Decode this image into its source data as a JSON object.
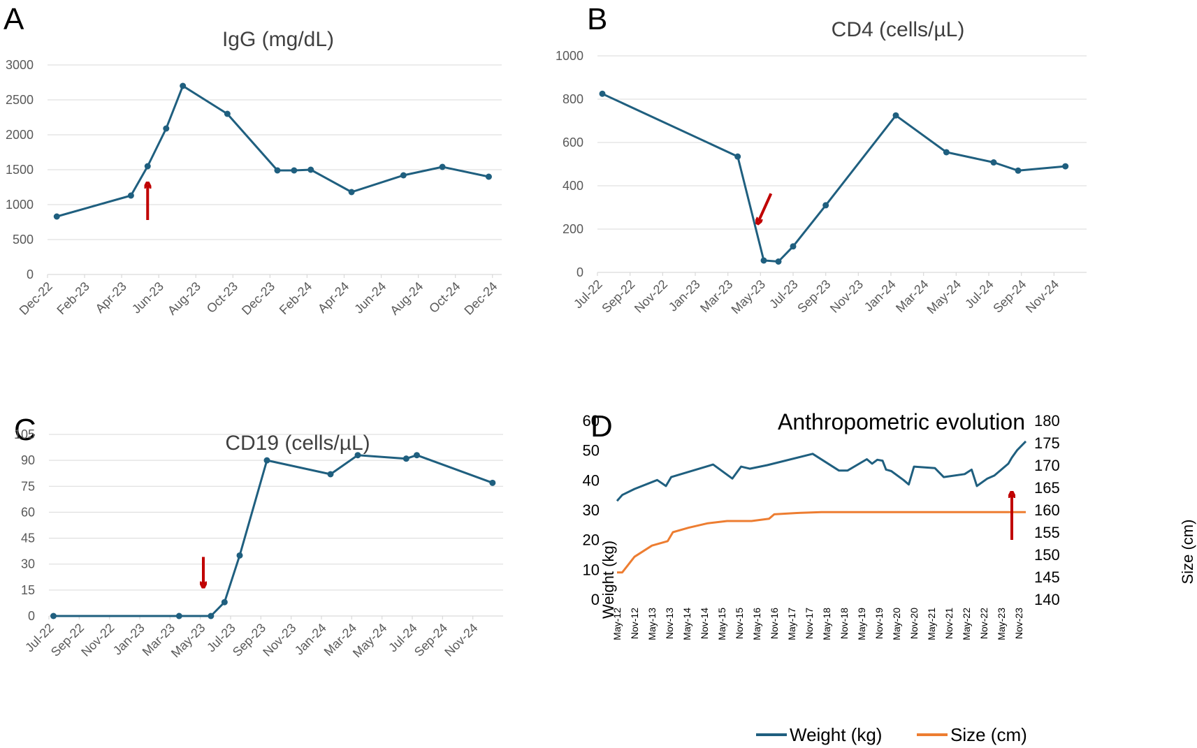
{
  "colors": {
    "line": "#1f5f7f",
    "orange": "#ed7d31",
    "arrow": "#c00000"
  },
  "chart_data": [
    {
      "panel": "A",
      "type": "line",
      "title": "IgG (mg/dL)",
      "ylim": [
        0,
        3000
      ],
      "yticks": [
        0,
        500,
        1000,
        1500,
        2000,
        2500,
        3000
      ],
      "xlim": [
        0,
        24.5
      ],
      "xticks": [
        {
          "label": "Dec-22",
          "t": 0
        },
        {
          "label": "Feb-23",
          "t": 2
        },
        {
          "label": "Apr-23",
          "t": 4
        },
        {
          "label": "Jun-23",
          "t": 6
        },
        {
          "label": "Aug-23",
          "t": 8
        },
        {
          "label": "Oct-23",
          "t": 10
        },
        {
          "label": "Dec-23",
          "t": 12
        },
        {
          "label": "Feb-24",
          "t": 14
        },
        {
          "label": "Apr-24",
          "t": 16
        },
        {
          "label": "Jun-24",
          "t": 18
        },
        {
          "label": "Aug-24",
          "t": 20
        },
        {
          "label": "Oct-24",
          "t": 22
        },
        {
          "label": "Dec-24",
          "t": 24
        }
      ],
      "series": [
        {
          "name": "IgG",
          "t": [
            0.5,
            4.5,
            5.4,
            6.4,
            7.3,
            9.7,
            12.4,
            13.3,
            14.2,
            16.4,
            19.2,
            21.3,
            23.8
          ],
          "values": [
            830,
            1130,
            1550,
            2090,
            2700,
            2300,
            1490,
            1490,
            1500,
            1180,
            1420,
            1540,
            1400
          ]
        }
      ],
      "arrow": {
        "t": 5.4,
        "value": 780,
        "direction": "up"
      }
    },
    {
      "panel": "B",
      "type": "line",
      "title": "CD4 (cells/µL)",
      "ylim": [
        0,
        1000
      ],
      "yticks": [
        0,
        200,
        400,
        600,
        800,
        1000
      ],
      "xlim": [
        0,
        30
      ],
      "xticks": [
        {
          "label": "Jul-22",
          "t": 0
        },
        {
          "label": "Sep-22",
          "t": 2
        },
        {
          "label": "Nov-22",
          "t": 4
        },
        {
          "label": "Jan-23",
          "t": 6
        },
        {
          "label": "Mar-23",
          "t": 8
        },
        {
          "label": "May-23",
          "t": 10
        },
        {
          "label": "Jul-23",
          "t": 12
        },
        {
          "label": "Sep-23",
          "t": 14
        },
        {
          "label": "Nov-23",
          "t": 16
        },
        {
          "label": "Jan-24",
          "t": 18
        },
        {
          "label": "Mar-24",
          "t": 20
        },
        {
          "label": "May-24",
          "t": 22
        },
        {
          "label": "Jul-24",
          "t": 24
        },
        {
          "label": "Sep-24",
          "t": 26
        },
        {
          "label": "Nov-24",
          "t": 28
        }
      ],
      "series": [
        {
          "name": "CD4",
          "t": [
            0.3,
            8.6,
            10.2,
            11.1,
            12.0,
            14.0,
            18.3,
            21.4,
            24.3,
            25.8,
            28.7
          ],
          "values": [
            825,
            535,
            55,
            50,
            120,
            310,
            725,
            555,
            508,
            470,
            490
          ]
        }
      ],
      "arrow": {
        "t": 10.3,
        "value": 235,
        "direction": "down-left"
      }
    },
    {
      "panel": "C",
      "type": "line",
      "title": "CD19 (cells/µL)",
      "ylim": [
        0,
        105
      ],
      "yticks": [
        0,
        15,
        30,
        45,
        60,
        75,
        90,
        105
      ],
      "xlim": [
        0,
        30
      ],
      "xticks": [
        {
          "label": "Jul-22",
          "t": 0
        },
        {
          "label": "Sep-22",
          "t": 2
        },
        {
          "label": "Nov-22",
          "t": 4
        },
        {
          "label": "Jan-23",
          "t": 6
        },
        {
          "label": "Mar-23",
          "t": 8
        },
        {
          "label": "May-23",
          "t": 10
        },
        {
          "label": "Jul-23",
          "t": 12
        },
        {
          "label": "Sep-23",
          "t": 14
        },
        {
          "label": "Nov-23",
          "t": 16
        },
        {
          "label": "Jan-24",
          "t": 18
        },
        {
          "label": "Mar-24",
          "t": 20
        },
        {
          "label": "May-24",
          "t": 22
        },
        {
          "label": "Jul-24",
          "t": 24
        },
        {
          "label": "Sep-24",
          "t": 26
        },
        {
          "label": "Nov-24",
          "t": 28
        }
      ],
      "series": [
        {
          "name": "CD19",
          "t": [
            0.3,
            8.6,
            10.7,
            11.6,
            12.6,
            14.4,
            18.6,
            20.4,
            23.6,
            24.3,
            29.3
          ],
          "values": [
            0,
            0,
            0,
            8,
            35,
            90,
            82,
            93,
            91,
            93,
            77
          ]
        }
      ],
      "arrow": {
        "t": 10.2,
        "value": 18,
        "direction": "down"
      }
    },
    {
      "panel": "D",
      "type": "line",
      "title": "Anthropometric evolution",
      "ylabel": "Weight (kg)",
      "y2label": "Size (cm)",
      "ylim": [
        0,
        60
      ],
      "yticks": [
        0,
        10,
        20,
        30,
        40,
        50,
        60
      ],
      "y2lim": [
        140,
        180
      ],
      "y2ticks": [
        140,
        145,
        150,
        155,
        160,
        165,
        170,
        175,
        180
      ],
      "xlim": [
        0,
        23.4
      ],
      "xticks": [
        "May-12",
        "Nov-12",
        "May-13",
        "Nov-13",
        "May-14",
        "Nov-14",
        "May-15",
        "Nov-15",
        "May-16",
        "Nov-16",
        "May-17",
        "Nov-17",
        "May-18",
        "Nov-18",
        "May-19",
        "Nov-19",
        "May-20",
        "Nov-20",
        "May-21",
        "Nov-21",
        "May-22",
        "Nov-22",
        "May-23",
        "Nov-23"
      ],
      "series": [
        {
          "name": "Weight (kg)",
          "axis": "left",
          "t": [
            0,
            0.3,
            1.0,
            2.3,
            2.8,
            3.1,
            5.5,
            6.6,
            7.1,
            7.6,
            8.6,
            11.2,
            12.7,
            13.2,
            14.3,
            14.6,
            14.9,
            15.2,
            15.4,
            15.7,
            16.4,
            16.7,
            17.0,
            18.2,
            18.7,
            19.9,
            20.3,
            20.6,
            21.2,
            21.6,
            22.4,
            22.6,
            22.9,
            23.4
          ],
          "values": [
            33,
            35,
            37,
            40,
            38,
            41,
            45.2,
            40.5,
            44.5,
            43.8,
            45,
            48.8,
            43.2,
            43.2,
            47,
            45.5,
            46.8,
            46.5,
            43.5,
            43,
            40,
            38.5,
            44.5,
            44,
            41,
            42,
            43.5,
            38,
            40.5,
            41.5,
            45.5,
            47.5,
            50,
            53
          ]
        },
        {
          "name": "Size (cm)",
          "axis": "right",
          "t": [
            0,
            0.3,
            1.0,
            2.0,
            2.9,
            3.2,
            4.1,
            5.2,
            6.3,
            7.7,
            8.7,
            9.0,
            10.3,
            11.7,
            23.4
          ],
          "values": [
            146,
            146,
            149.5,
            152,
            153,
            155,
            156,
            157,
            157.5,
            157.5,
            158,
            159,
            159.3,
            159.5,
            159.5
          ]
        }
      ],
      "arrow": {
        "t": 22.6,
        "value": 165,
        "axis": "right",
        "direction": "up"
      },
      "legend": [
        "Weight (kg)",
        "Size (cm)"
      ]
    }
  ]
}
